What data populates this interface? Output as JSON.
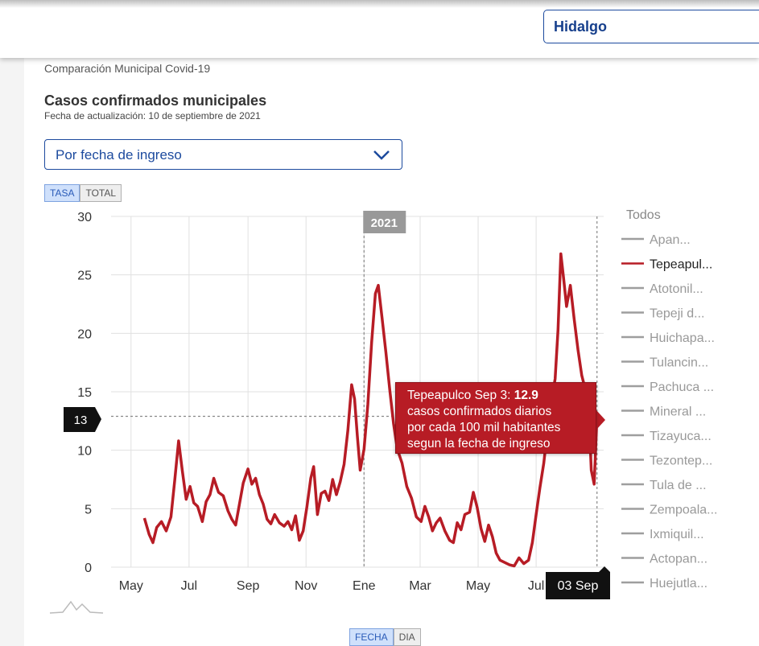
{
  "state_selector": {
    "value": "Hidalgo"
  },
  "header": {
    "kicker": "Comparación Municipal Covid-19",
    "title": "Casos confirmados municipales",
    "updated": "Fecha de actualización: 10 de septiembre de 2021"
  },
  "filter_dropdown": {
    "value": "Por fecha de ingreso"
  },
  "toggles": {
    "metric": [
      "TASA",
      "TOTAL"
    ],
    "metric_active": "TASA",
    "axis": [
      "FECHA",
      "DIA"
    ],
    "axis_active": "FECHA"
  },
  "tooltip": {
    "label": "Tepeapulco Sep 3: ",
    "value": "12.9",
    "line2": "casos confirmados diarios",
    "line3": "por cada 100 mil habitantes",
    "line4": "segun la fecha de ingreso"
  },
  "colors": {
    "highlight": "#b71c25",
    "muted": "#9e9e9e",
    "accent": "#1c4a9e"
  },
  "chart_data": {
    "type": "line",
    "ylim": [
      0,
      30
    ],
    "yticks": [
      0,
      5,
      10,
      15,
      20,
      25,
      30
    ],
    "xlim": [
      "2020-04-10",
      "2021-09-10"
    ],
    "xticks": [
      {
        "date": "2020-05-01",
        "label": "May"
      },
      {
        "date": "2020-07-01",
        "label": "Jul"
      },
      {
        "date": "2020-09-01",
        "label": "Sep"
      },
      {
        "date": "2020-11-01",
        "label": "Nov"
      },
      {
        "date": "2021-01-01",
        "label": "Ene"
      },
      {
        "date": "2021-03-01",
        "label": "Mar"
      },
      {
        "date": "2021-05-01",
        "label": "May"
      },
      {
        "date": "2021-07-01",
        "label": "Jul"
      }
    ],
    "year_marker": {
      "date": "2021-01-01",
      "label": "2021"
    },
    "hover": {
      "date": "2021-09-03",
      "x_label": "03 Sep",
      "y_label": "13",
      "value": 12.9
    },
    "legend_title": "Todos",
    "legend": [
      "Apan...",
      "Tepeapul...",
      "Atotonil...",
      "Tepeji d...",
      "Huichapa...",
      "Tulancin...",
      "Pachuca ...",
      "Mineral ...",
      "Tizayuca...",
      "Tezontep...",
      "Tula de ...",
      "Zempoala...",
      "Ixmiquil...",
      "Actopan...",
      "Huejutla..."
    ],
    "highlighted_series": "Tepeapul...",
    "series": [
      {
        "name": "Tepeapulco",
        "points": [
          [
            "2020-05-15",
            4.2
          ],
          [
            "2020-05-20",
            2.8
          ],
          [
            "2020-05-24",
            2.1
          ],
          [
            "2020-05-28",
            3.4
          ],
          [
            "2020-06-02",
            3.9
          ],
          [
            "2020-06-07",
            3.1
          ],
          [
            "2020-06-12",
            4.3
          ],
          [
            "2020-06-16",
            7.5
          ],
          [
            "2020-06-20",
            10.8
          ],
          [
            "2020-06-24",
            8.2
          ],
          [
            "2020-06-28",
            5.8
          ],
          [
            "2020-07-02",
            6.9
          ],
          [
            "2020-07-06",
            5.5
          ],
          [
            "2020-07-10",
            5.2
          ],
          [
            "2020-07-15",
            3.9
          ],
          [
            "2020-07-19",
            5.6
          ],
          [
            "2020-07-23",
            6.2
          ],
          [
            "2020-07-27",
            7.6
          ],
          [
            "2020-08-01",
            6.4
          ],
          [
            "2020-08-06",
            6.1
          ],
          [
            "2020-08-11",
            4.8
          ],
          [
            "2020-08-15",
            4.1
          ],
          [
            "2020-08-19",
            3.6
          ],
          [
            "2020-08-23",
            5.4
          ],
          [
            "2020-08-27",
            7.2
          ],
          [
            "2020-09-01",
            8.4
          ],
          [
            "2020-09-05",
            7.1
          ],
          [
            "2020-09-09",
            7.6
          ],
          [
            "2020-09-13",
            6.2
          ],
          [
            "2020-09-17",
            5.4
          ],
          [
            "2020-09-21",
            4.1
          ],
          [
            "2020-09-25",
            3.7
          ],
          [
            "2020-09-29",
            4.5
          ],
          [
            "2020-10-04",
            3.8
          ],
          [
            "2020-10-09",
            3.5
          ],
          [
            "2020-10-13",
            3.9
          ],
          [
            "2020-10-17",
            3.2
          ],
          [
            "2020-10-21",
            4.4
          ],
          [
            "2020-10-25",
            2.3
          ],
          [
            "2020-10-29",
            3.1
          ],
          [
            "2020-11-02",
            5.2
          ],
          [
            "2020-11-06",
            7.6
          ],
          [
            "2020-11-09",
            8.6
          ],
          [
            "2020-11-13",
            4.5
          ],
          [
            "2020-11-17",
            6.3
          ],
          [
            "2020-11-21",
            6.5
          ],
          [
            "2020-11-25",
            5.7
          ],
          [
            "2020-11-29",
            7.5
          ],
          [
            "2020-12-03",
            6.2
          ],
          [
            "2020-12-07",
            7.3
          ],
          [
            "2020-12-11",
            8.8
          ],
          [
            "2020-12-15",
            11.7
          ],
          [
            "2020-12-19",
            15.6
          ],
          [
            "2020-12-22",
            14.4
          ],
          [
            "2020-12-25",
            11.2
          ],
          [
            "2020-12-28",
            8.3
          ],
          [
            "2021-01-01",
            10.1
          ],
          [
            "2021-01-05",
            13.9
          ],
          [
            "2021-01-09",
            19.2
          ],
          [
            "2021-01-13",
            23.4
          ],
          [
            "2021-01-16",
            24.1
          ],
          [
            "2021-01-20",
            21.3
          ],
          [
            "2021-01-24",
            18.4
          ],
          [
            "2021-01-28",
            15.2
          ],
          [
            "2021-02-01",
            12.3
          ],
          [
            "2021-02-05",
            10.1
          ],
          [
            "2021-02-10",
            8.9
          ],
          [
            "2021-02-15",
            6.9
          ],
          [
            "2021-02-20",
            5.9
          ],
          [
            "2021-02-25",
            4.3
          ],
          [
            "2021-03-02",
            3.9
          ],
          [
            "2021-03-06",
            5.2
          ],
          [
            "2021-03-10",
            4.3
          ],
          [
            "2021-03-14",
            3.1
          ],
          [
            "2021-03-18",
            3.8
          ],
          [
            "2021-03-22",
            4.2
          ],
          [
            "2021-03-27",
            3.1
          ],
          [
            "2021-04-01",
            2.3
          ],
          [
            "2021-04-05",
            2.1
          ],
          [
            "2021-04-09",
            3.8
          ],
          [
            "2021-04-13",
            3.2
          ],
          [
            "2021-04-17",
            4.5
          ],
          [
            "2021-04-22",
            4.7
          ],
          [
            "2021-04-26",
            6.4
          ],
          [
            "2021-04-30",
            5.1
          ],
          [
            "2021-05-04",
            3.3
          ],
          [
            "2021-05-08",
            2.2
          ],
          [
            "2021-05-12",
            3.6
          ],
          [
            "2021-05-16",
            2.6
          ],
          [
            "2021-05-20",
            1.2
          ],
          [
            "2021-05-24",
            0.6
          ],
          [
            "2021-05-29",
            0.4
          ],
          [
            "2021-06-03",
            0.2
          ],
          [
            "2021-06-08",
            0.1
          ],
          [
            "2021-06-13",
            0.8
          ],
          [
            "2021-06-18",
            0.3
          ],
          [
            "2021-06-23",
            0.6
          ],
          [
            "2021-06-27",
            2.1
          ],
          [
            "2021-07-01",
            4.5
          ],
          [
            "2021-07-05",
            6.8
          ],
          [
            "2021-07-09",
            8.9
          ],
          [
            "2021-07-13",
            11.8
          ],
          [
            "2021-07-17",
            14.2
          ],
          [
            "2021-07-21",
            16.1
          ],
          [
            "2021-07-24",
            20.3
          ],
          [
            "2021-07-27",
            26.8
          ],
          [
            "2021-07-30",
            24.6
          ],
          [
            "2021-08-02",
            22.3
          ],
          [
            "2021-08-06",
            24.1
          ],
          [
            "2021-08-10",
            21.2
          ],
          [
            "2021-08-14",
            18.6
          ],
          [
            "2021-08-18",
            16.4
          ],
          [
            "2021-08-22",
            15.1
          ],
          [
            "2021-08-25",
            14.2
          ],
          [
            "2021-08-28",
            8.3
          ],
          [
            "2021-08-31",
            7.1
          ],
          [
            "2021-09-03",
            12.9
          ]
        ]
      }
    ]
  }
}
